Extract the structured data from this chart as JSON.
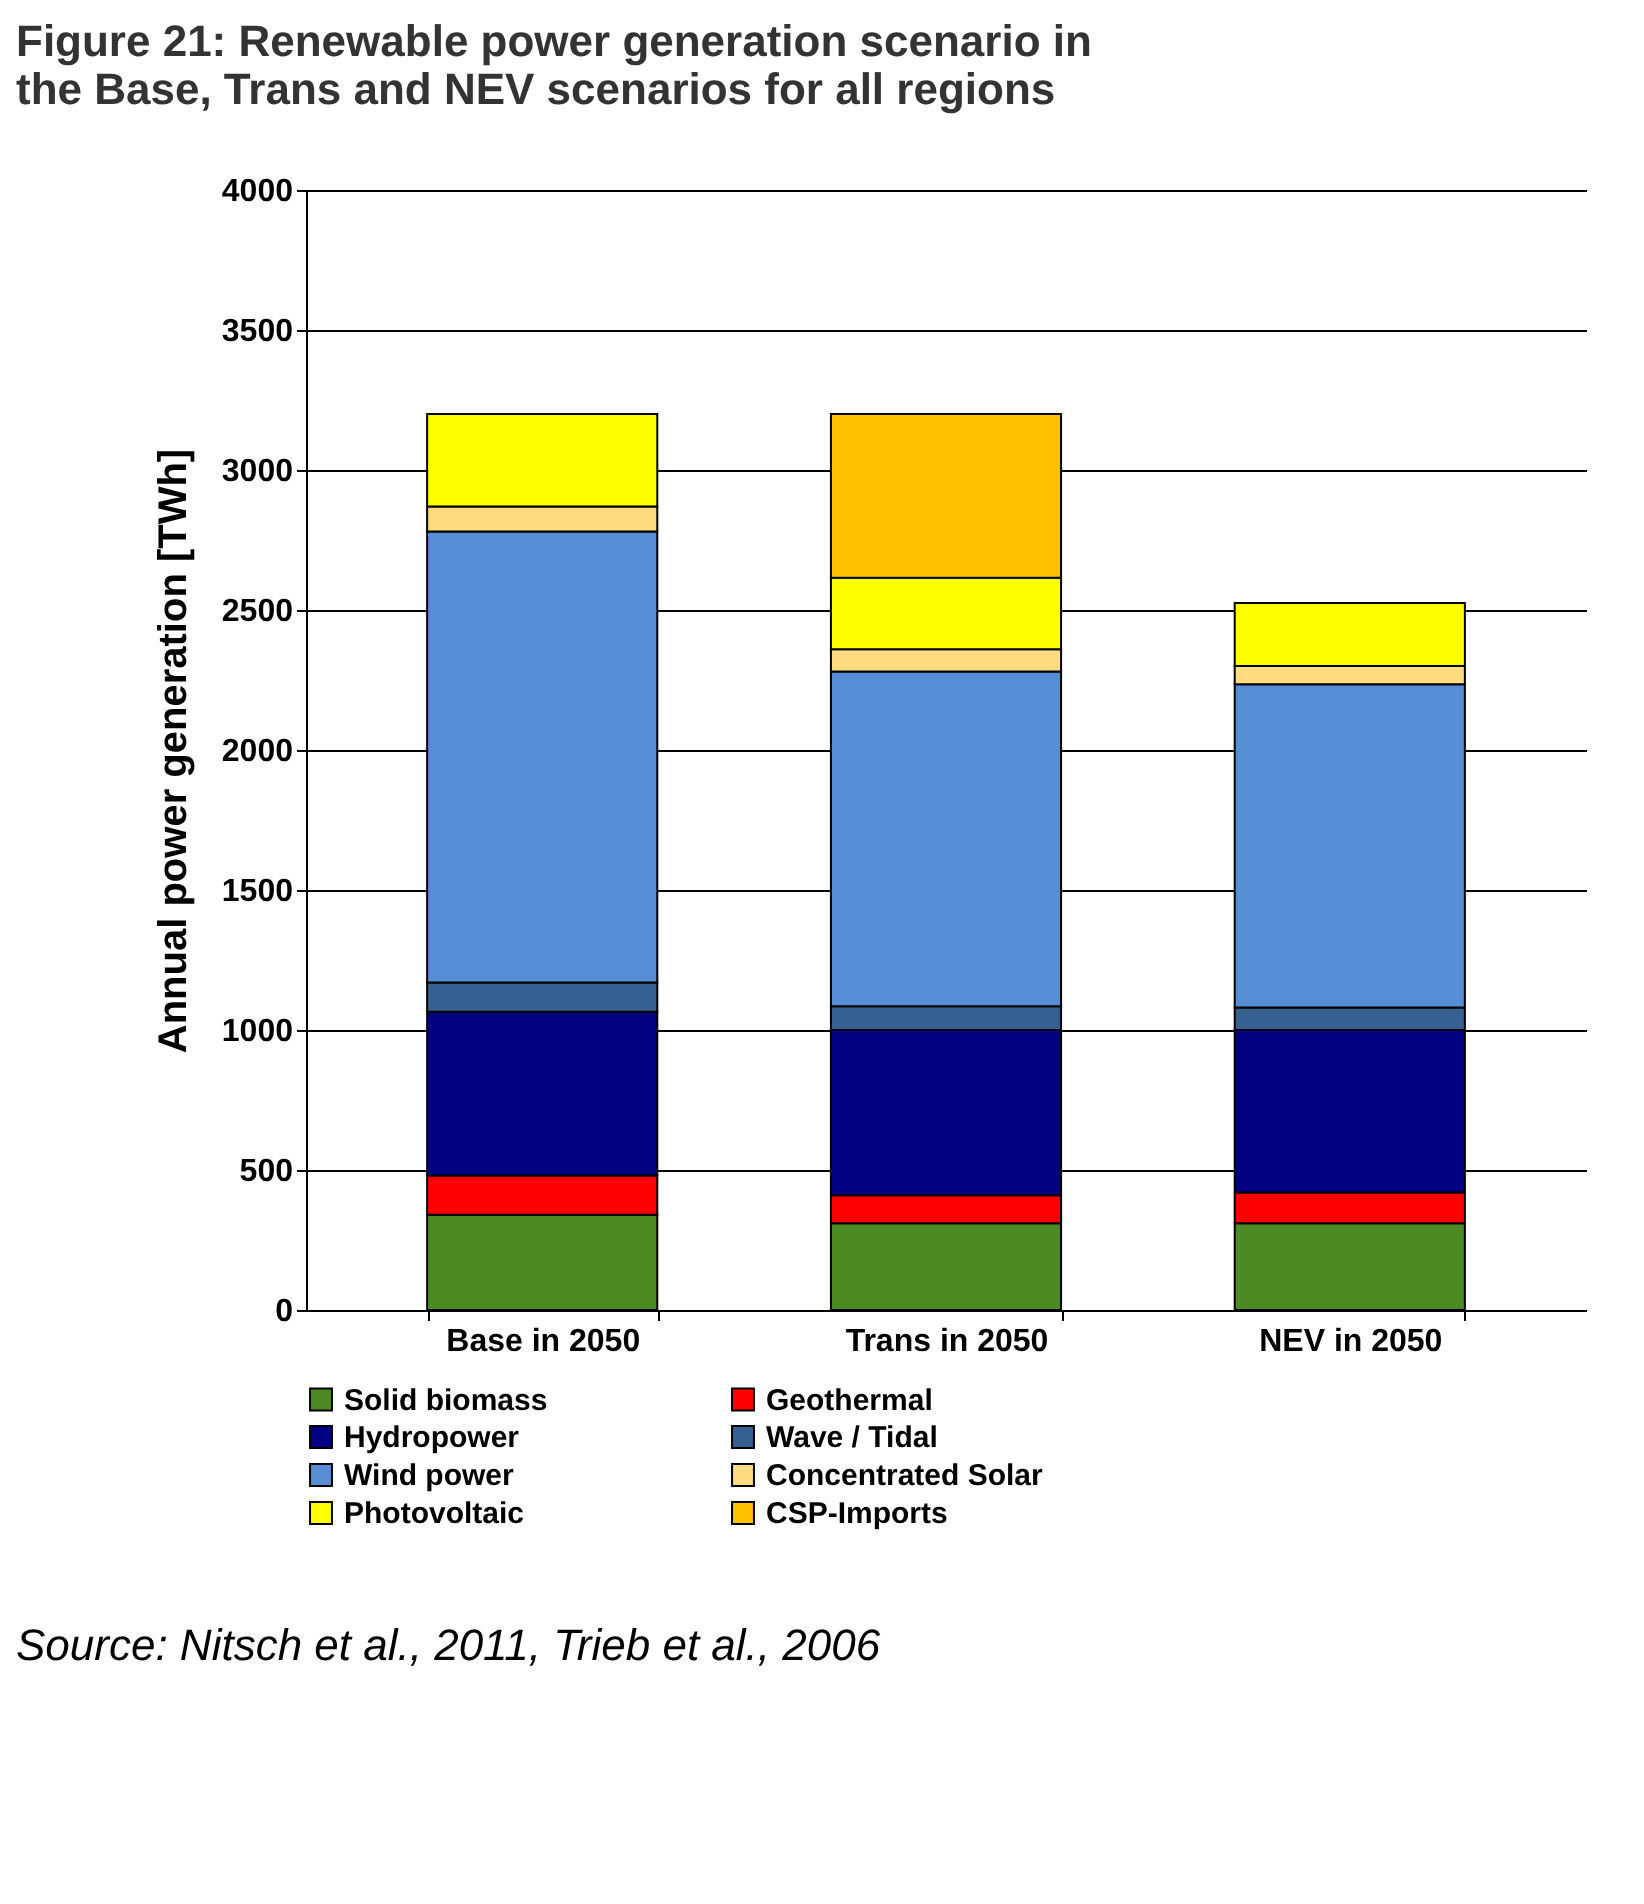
{
  "chart_data": {
    "type": "bar",
    "title": "Figure 21: Renewable power generation scenario in the Base, Trans and NEV scenarios for all regions",
    "ylabel": "Annual power generation [TWh]",
    "categories": [
      "Base in 2050",
      "Trans in 2050",
      "NEV in 2050"
    ],
    "stacked": true,
    "ylim": [
      0,
      4000
    ],
    "yticks": [
      0,
      500,
      1000,
      1500,
      2000,
      2500,
      3000,
      3500,
      4000
    ],
    "grid": "y",
    "legend": "bottom",
    "annotations": [
      "Source: Nitsch et al., 2011, Trieb et al., 2006"
    ],
    "series": [
      {
        "name": "Solid biomass",
        "color": "#4e8a24",
        "values": [
          340,
          310,
          310
        ]
      },
      {
        "name": "Geothermal",
        "color": "#ff0000",
        "values": [
          140,
          100,
          110
        ]
      },
      {
        "name": "Hydropower",
        "color": "#000080",
        "values": [
          585,
          590,
          580
        ]
      },
      {
        "name": "Wave / Tidal",
        "color": "#36608f",
        "values": [
          105,
          85,
          80
        ]
      },
      {
        "name": "Wind power",
        "color": "#558ed5",
        "values": [
          1610,
          1195,
          1155
        ]
      },
      {
        "name": "Concentrated Solar",
        "color": "#ffdc80",
        "values": [
          90,
          80,
          65
        ]
      },
      {
        "name": "Photovoltaic",
        "color": "#ffff00",
        "values": [
          330,
          255,
          225
        ]
      },
      {
        "name": "CSP-Imports",
        "color": "#ffc000",
        "values": [
          0,
          585,
          0
        ]
      }
    ]
  }
}
